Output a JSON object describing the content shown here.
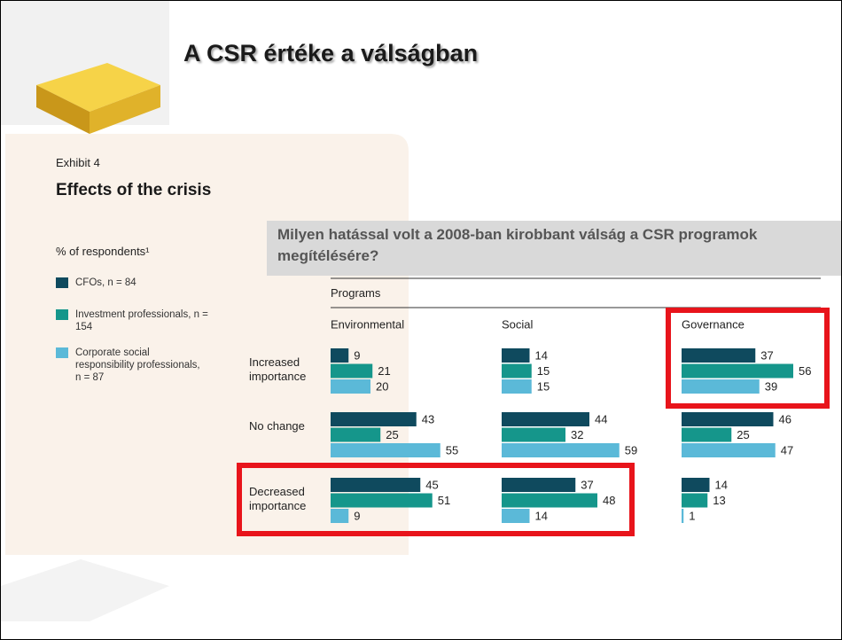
{
  "slide_title": "A CSR értéke a válságban",
  "question": "Milyen hatással volt a 2008-ban kirobbant válság a CSR programok megítélésére?",
  "chart_data": {
    "type": "bar",
    "orientation": "horizontal",
    "label": "Exhibit 4",
    "title": "Effects of the crisis",
    "subtitle": "% of respondents¹",
    "group_label": "Programs",
    "groups": [
      "Environmental",
      "Social",
      "Governance"
    ],
    "categories": [
      "Increased importance",
      "No change",
      "Decreased importance"
    ],
    "series": [
      {
        "name": "CFOs, n = 84",
        "color": "#0f4a5e",
        "values": [
          [
            9,
            43,
            45
          ],
          [
            14,
            44,
            37
          ],
          [
            37,
            46,
            14
          ]
        ]
      },
      {
        "name": "Investment professionals, n = 154",
        "color": "#15968b",
        "values": [
          [
            21,
            25,
            51
          ],
          [
            15,
            32,
            48
          ],
          [
            56,
            25,
            13
          ]
        ]
      },
      {
        "name": "Corporate social responsibility professionals, n = 87",
        "color": "#5bb9d8",
        "values": [
          [
            20,
            55,
            9
          ],
          [
            15,
            59,
            14
          ],
          [
            39,
            47,
            1
          ]
        ]
      }
    ]
  }
}
